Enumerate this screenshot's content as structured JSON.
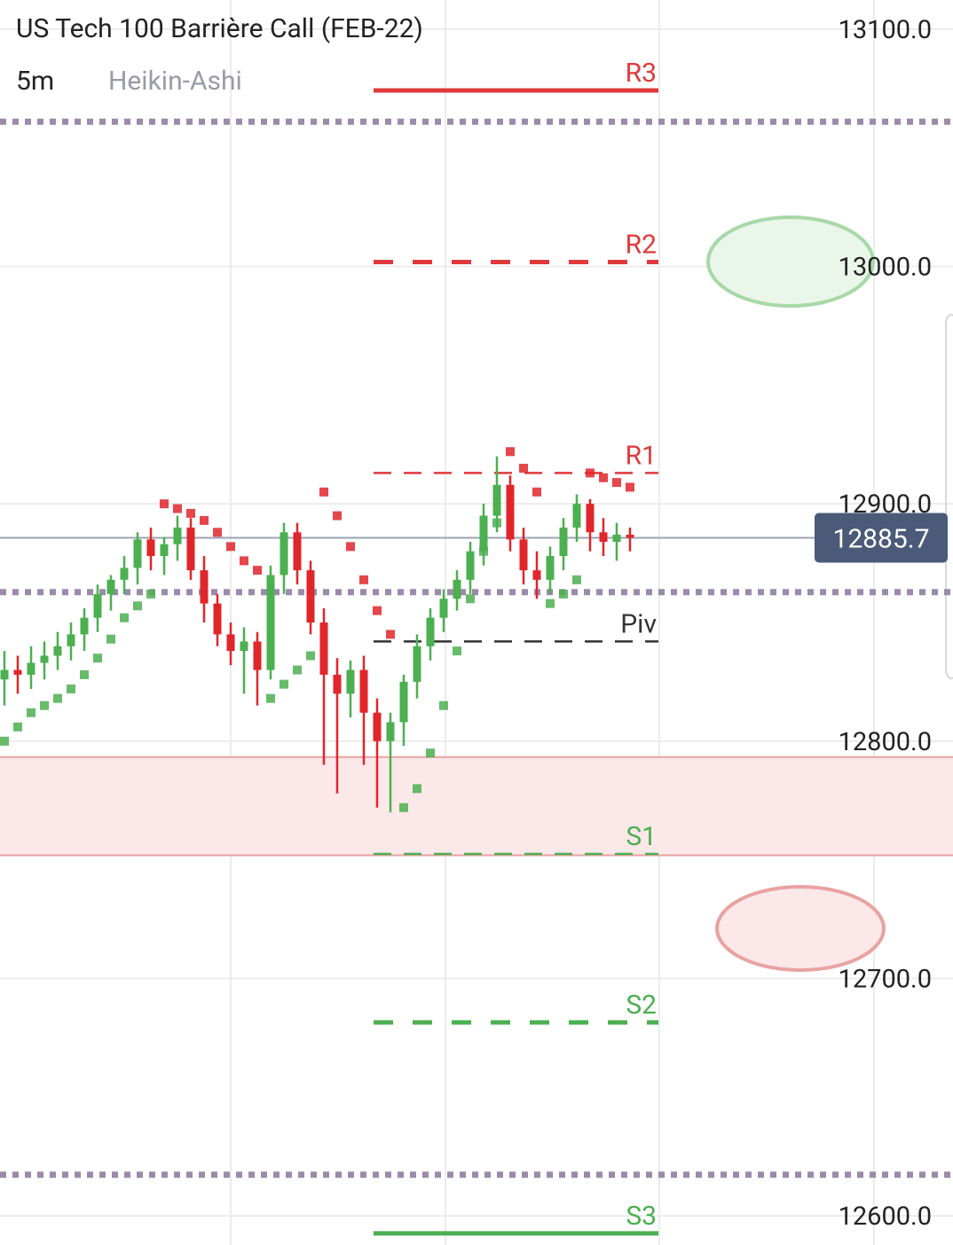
{
  "chart_data": {
    "type": "candlestick",
    "title": "US Tech 100 Barrière Call (FEB-22)",
    "interval": "5m",
    "chart_style": "Heikin-Ashi",
    "ylim": [
      12587.7,
      13112.3
    ],
    "yticks": [
      {
        "value": 13100,
        "label": "13100.0"
      },
      {
        "value": 13000,
        "label": "13000.0"
      },
      {
        "value": 12900,
        "label": "12900.0"
      },
      {
        "value": 12800,
        "label": "12800.0"
      },
      {
        "value": 12700,
        "label": "12700.0"
      },
      {
        "value": 12600,
        "label": "12600.0"
      }
    ],
    "up_color": "#4caf50",
    "down_color": "#e0262a",
    "open": [
      12826,
      12830,
      12828,
      12833,
      12836,
      12840,
      12845,
      12852,
      12862,
      12868,
      12873,
      12885,
      12878,
      12883,
      12890,
      12872,
      12858,
      12845,
      12838,
      12842,
      12830,
      12870,
      12888,
      12872,
      12850,
      12828,
      12820,
      12830,
      12812,
      12800,
      12808,
      12825,
      12840,
      12852,
      12860,
      12868,
      12880,
      12895,
      12908,
      12885,
      12872,
      12868,
      12878,
      12890,
      12900,
      12888,
      12884,
      12887
    ],
    "high": [
      12838,
      12836,
      12840,
      12842,
      12846,
      12850,
      12856,
      12866,
      12870,
      12878,
      12888,
      12890,
      12886,
      12895,
      12894,
      12878,
      12862,
      12850,
      12848,
      12846,
      12874,
      12892,
      12892,
      12876,
      12856,
      12835,
      12834,
      12836,
      12818,
      12812,
      12828,
      12845,
      12856,
      12864,
      12872,
      12884,
      12900,
      12920,
      12912,
      12890,
      12880,
      12882,
      12894,
      12904,
      12902,
      12894,
      12892,
      12890
    ],
    "high_note": null,
    "low": [
      12815,
      12820,
      12822,
      12826,
      12830,
      12834,
      12838,
      12846,
      12855,
      12862,
      12866,
      12872,
      12870,
      12876,
      12868,
      12850,
      12840,
      12832,
      12820,
      12815,
      12826,
      12862,
      12866,
      12845,
      12790,
      12778,
      12810,
      12790,
      12772,
      12770,
      12798,
      12818,
      12834,
      12846,
      12855,
      12862,
      12874,
      12888,
      12880,
      12866,
      12860,
      12862,
      12872,
      12884,
      12880,
      12878,
      12876,
      12880
    ],
    "close": [
      12830,
      12828,
      12833,
      12836,
      12840,
      12845,
      12852,
      12862,
      12868,
      12873,
      12885,
      12878,
      12883,
      12890,
      12872,
      12858,
      12845,
      12838,
      12842,
      12830,
      12870,
      12888,
      12872,
      12850,
      12828,
      12820,
      12830,
      12812,
      12800,
      12808,
      12825,
      12840,
      12852,
      12860,
      12868,
      12880,
      12895,
      12908,
      12885,
      12872,
      12868,
      12878,
      12890,
      12900,
      12888,
      12884,
      12887,
      12885.7
    ],
    "sar": [
      12800,
      12806,
      12812,
      12815,
      12818,
      12822,
      12828,
      12835,
      12843,
      12852,
      12857,
      12862,
      12900,
      12898,
      12896,
      12893,
      12888,
      12882,
      12876,
      12872,
      12818,
      12824,
      12830,
      12836,
      12905,
      12895,
      12882,
      12868,
      12855,
      12845,
      12772,
      12780,
      12795,
      12815,
      12838,
      12860,
      12880,
      12892,
      12922,
      12915,
      12905,
      12858,
      12862,
      12868,
      12913,
      12911,
      12909,
      12907
    ],
    "last_price": 12885.7,
    "last_price_color": "#4a5a78",
    "levels": [
      {
        "name": "R3",
        "value": 13074.2,
        "color": "#e0393c",
        "style": "solid"
      },
      {
        "name": "R2",
        "value": 13001.9,
        "color": "#e0393c",
        "style": "dashed"
      },
      {
        "name": "R1",
        "value": 12913,
        "color": "#e0393c",
        "style": "thin"
      },
      {
        "name": "Piv",
        "value": 12842,
        "color": "#333333",
        "style": "thin"
      },
      {
        "name": "S1",
        "value": 12752.5,
        "color": "#4caf50",
        "style": "thin"
      },
      {
        "name": "S2",
        "value": 12681.5,
        "color": "#4caf50",
        "style": "dashed"
      },
      {
        "name": "S3",
        "value": 12592.6,
        "color": "#4caf50",
        "style": "solid"
      }
    ],
    "dotted_lines": [
      13061,
      12862.8,
      12617.3
    ],
    "dotted_color": "#9b8aaa",
    "zone": {
      "from": 12751.9,
      "to": 12793.3,
      "color": "#fce8e8"
    }
  }
}
